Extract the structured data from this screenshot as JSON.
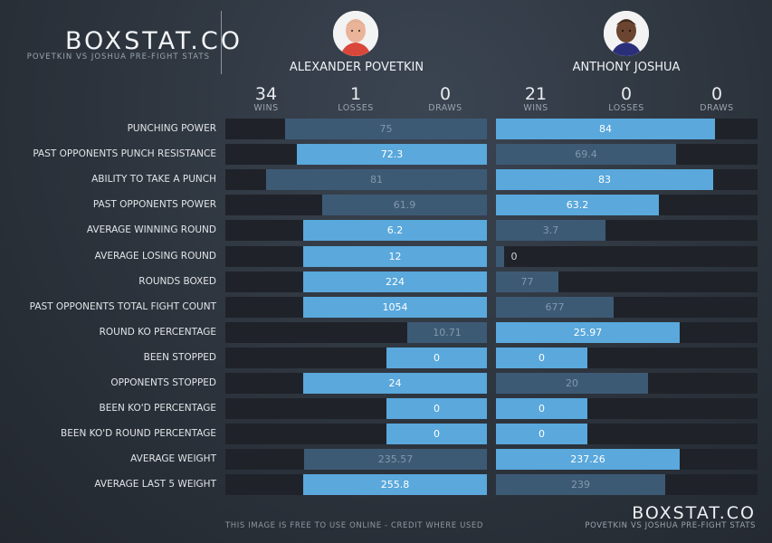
{
  "header": {
    "brand": "BOXSTAT.CO",
    "subtitle": "POVETKIN VS JOSHUA PRE-FIGHT STATS"
  },
  "fighters": [
    {
      "name": "ALEXANDER POVETKIN",
      "wins": "34",
      "losses": "1",
      "draws": "0",
      "avatar_icon": "fighter-portrait-icon"
    },
    {
      "name": "ANTHONY JOSHUA",
      "wins": "21",
      "losses": "0",
      "draws": "0",
      "avatar_icon": "fighter-portrait-icon"
    }
  ],
  "record_labels": {
    "wins": "WINS",
    "losses": "LOSSES",
    "draws": "DRAWS"
  },
  "colors": {
    "leader": "#5aa8dc",
    "trailer": "#3d5a75",
    "track": "#1f2329"
  },
  "chart_data": {
    "type": "bar",
    "orientation": "horizontal-butterfly",
    "series": [
      {
        "name": "ALEXANDER POVETKIN",
        "values": [
          75,
          72.3,
          81,
          61.9,
          6.2,
          12,
          224,
          1054,
          10.71,
          0,
          24,
          0,
          0,
          235.57,
          255.8
        ],
        "labels": [
          "75",
          "72.3",
          "81",
          "61.9",
          "6.2",
          "12",
          "224",
          "1054",
          "10.71",
          "0",
          "24",
          "0",
          "0",
          "235.57",
          "255.8"
        ]
      },
      {
        "name": "ANTHONY JOSHUA",
        "values": [
          84,
          69.4,
          83,
          63.2,
          3.7,
          0,
          77,
          677,
          25.97,
          0,
          20,
          0,
          0,
          237.26,
          239
        ],
        "labels": [
          "84",
          "69.4",
          "83",
          "63.2",
          "3.7",
          "0",
          "77",
          "677",
          "25.97",
          "0",
          "20",
          "0",
          "0",
          "237.26",
          "239"
        ]
      }
    ],
    "categories": [
      "PUNCHING POWER",
      "PAST OPPONENTS PUNCH RESISTANCE",
      "ABILITY TO TAKE A PUNCH",
      "PAST OPPONENTS POWER",
      "AVERAGE WINNING ROUND",
      "AVERAGE LOSING ROUND",
      "ROUNDS BOXED",
      "PAST OPPONENTS TOTAL FIGHT COUNT",
      "ROUND KO PERCENTAGE",
      "BEEN STOPPED",
      "OPPONENTS STOPPED",
      "BEEN KO'D PERCENTAGE",
      "BEEN KO'D ROUND PERCENTAGE",
      "AVERAGE WEIGHT",
      "AVERAGE LAST 5 WEIGHT"
    ],
    "bar_fraction": [
      [
        0.771,
        0.838
      ],
      [
        0.727,
        0.689
      ],
      [
        0.845,
        0.832
      ],
      [
        0.629,
        0.623
      ],
      [
        0.704,
        0.418
      ],
      [
        0.704,
        0.031
      ],
      [
        0.704,
        0.239
      ],
      [
        0.704,
        0.449
      ],
      [
        0.304,
        0.704
      ],
      [
        0.384,
        0.349
      ],
      [
        0.704,
        0.582
      ],
      [
        0.384,
        0.349
      ],
      [
        0.384,
        0.349
      ],
      [
        0.698,
        0.704
      ],
      [
        0.704,
        0.648
      ]
    ],
    "leader": [
      "right",
      "left",
      "right",
      "right",
      "left",
      "left",
      "left",
      "left",
      "right",
      "both",
      "left",
      "both",
      "both",
      "right",
      "left"
    ]
  },
  "footer": {
    "credit": "THIS IMAGE IS FREE TO USE ONLINE - CREDIT WHERE USED",
    "brand": "BOXSTAT.CO",
    "subtitle": "POVETKIN VS JOSHUA PRE-FIGHT STATS"
  }
}
